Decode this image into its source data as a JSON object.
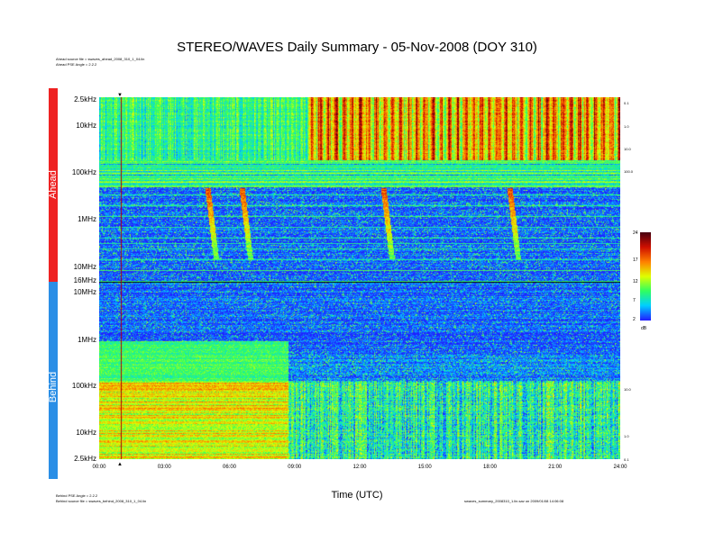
{
  "chart_data": {
    "type": "heatmap",
    "title": "STEREO/WAVES Daily Summary - 05-Nov-2008 (DOY 310)",
    "xlabel": "Time (UTC)",
    "x_ticks": [
      "00:00",
      "03:00",
      "06:00",
      "09:00",
      "12:00",
      "15:00",
      "18:00",
      "21:00",
      "24:00"
    ],
    "xlim_hours": [
      0,
      24
    ],
    "panels": [
      {
        "name": "Ahead",
        "color": "#ee2222",
        "y_ticks": [
          "2.5kHz",
          "10kHz",
          "100kHz",
          "1MHz",
          "10MHz",
          "16MHz"
        ],
        "y_tick_freqs_khz": [
          2.5,
          10,
          100,
          1000,
          10000,
          16000
        ],
        "orientation": "frequency increasing downward",
        "source_note": "Ahead source file = swaves_ahead_2008_310_1_04.lin",
        "pse_note": "Ahead PSE Angle = 2.2.2",
        "right_ticks": [
          "0.1",
          "1.0",
          "10.0",
          "100.0"
        ]
      },
      {
        "name": "Behind",
        "color": "#2a8ee6",
        "y_ticks": [
          "10MHz",
          "1MHz",
          "100kHz",
          "10kHz",
          "2.5kHz"
        ],
        "y_tick_freqs_khz": [
          10000,
          1000,
          100,
          10,
          2.5
        ],
        "orientation": "frequency increasing upward",
        "source_note": "Behind source file = swaves_behind_2008_310_1_04.lin",
        "pse_note": "Behind PSE Angle = 2.2.2",
        "right_ticks": [
          "10.0",
          "1.0",
          "0.1"
        ]
      }
    ],
    "colorbar": {
      "ticks": [
        "24",
        "17",
        "12",
        "7",
        "2"
      ],
      "range_db": [
        2,
        24
      ],
      "units": "dB",
      "colors": [
        "#2020ff",
        "#00d0ff",
        "#30ff60",
        "#e0ff00",
        "#ff8000",
        "#d01000",
        "#4a0010"
      ]
    },
    "tick_marker_time": "01:00",
    "footer_right": "swaves_summary_2008310_1.lin.sav on 2009/01/08 14:06:08"
  }
}
